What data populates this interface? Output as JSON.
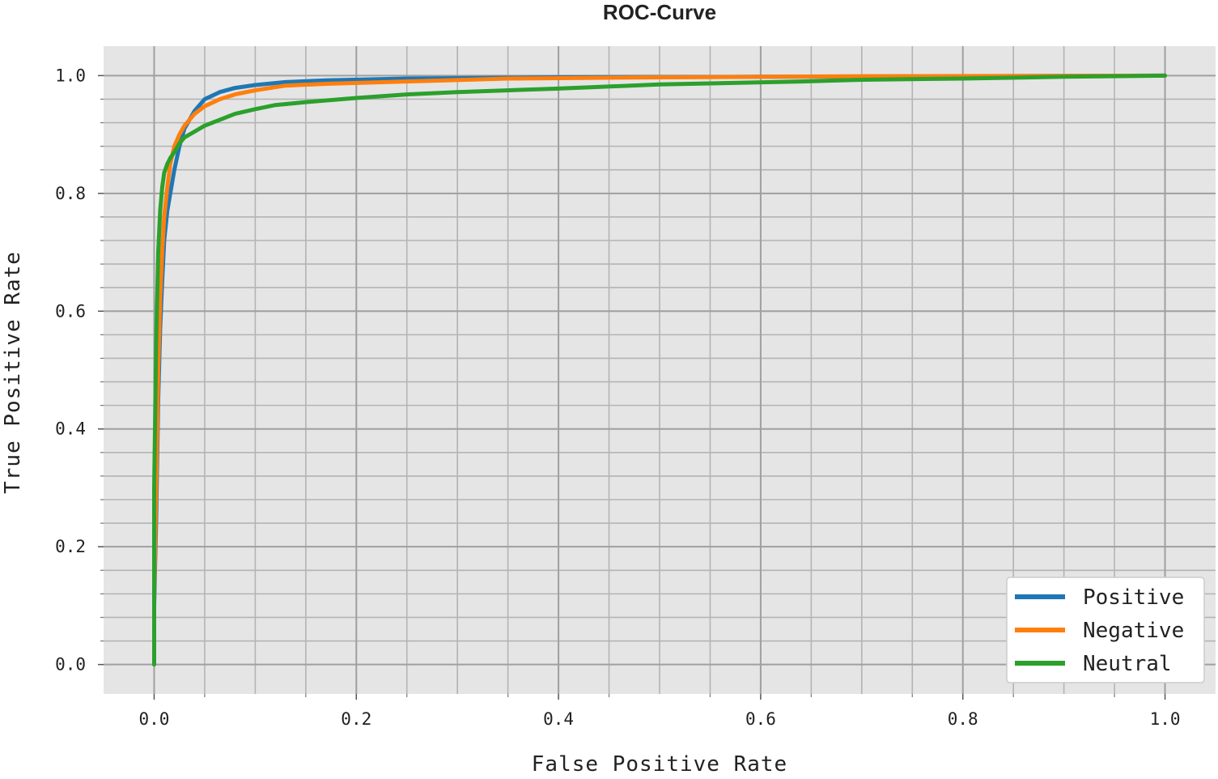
{
  "chart_data": {
    "type": "line",
    "title": "ROC-Curve",
    "xlabel": "False Positive Rate",
    "ylabel": "True Positive Rate",
    "xlim": [
      -0.05,
      1.05
    ],
    "ylim": [
      -0.05,
      1.05
    ],
    "xticks": [
      0.0,
      0.2,
      0.4,
      0.6,
      0.8,
      1.0
    ],
    "yticks": [
      0.0,
      0.2,
      0.4,
      0.6,
      0.8,
      1.0
    ],
    "xtick_labels": [
      "0.0",
      "0.2",
      "0.4",
      "0.6",
      "0.8",
      "1.0"
    ],
    "ytick_labels": [
      "0.0",
      "0.2",
      "0.4",
      "0.6",
      "0.8",
      "1.0"
    ],
    "grid": true,
    "legend_position": "bottom-right",
    "series": [
      {
        "name": "Positive",
        "color": "#1f77b4",
        "x": [
          0.0,
          0.0,
          0.002,
          0.004,
          0.006,
          0.008,
          0.01,
          0.013,
          0.016,
          0.02,
          0.025,
          0.03,
          0.04,
          0.05,
          0.065,
          0.08,
          0.1,
          0.13,
          0.17,
          0.25,
          0.4,
          0.6,
          0.8,
          1.0
        ],
        "y": [
          0.0,
          0.1,
          0.25,
          0.45,
          0.57,
          0.65,
          0.72,
          0.77,
          0.8,
          0.84,
          0.88,
          0.91,
          0.94,
          0.96,
          0.972,
          0.979,
          0.984,
          0.989,
          0.992,
          0.995,
          0.997,
          0.998,
          0.999,
          1.0
        ]
      },
      {
        "name": "Negative",
        "color": "#ff7f0e",
        "x": [
          0.0,
          0.0,
          0.002,
          0.004,
          0.006,
          0.008,
          0.01,
          0.013,
          0.016,
          0.02,
          0.025,
          0.03,
          0.04,
          0.05,
          0.065,
          0.08,
          0.1,
          0.13,
          0.17,
          0.25,
          0.35,
          0.5,
          0.7,
          1.0
        ],
        "y": [
          0.0,
          0.12,
          0.3,
          0.5,
          0.62,
          0.7,
          0.76,
          0.81,
          0.85,
          0.88,
          0.9,
          0.915,
          0.935,
          0.948,
          0.96,
          0.968,
          0.975,
          0.983,
          0.986,
          0.99,
          0.995,
          0.997,
          0.999,
          1.0
        ]
      },
      {
        "name": "Neutral",
        "color": "#2ca02c",
        "x": [
          0.0,
          0.0,
          0.002,
          0.004,
          0.006,
          0.008,
          0.01,
          0.013,
          0.016,
          0.02,
          0.025,
          0.03,
          0.04,
          0.05,
          0.065,
          0.08,
          0.1,
          0.12,
          0.15,
          0.2,
          0.25,
          0.3,
          0.4,
          0.5,
          0.64,
          0.7,
          0.8,
          0.9,
          1.0
        ],
        "y": [
          0.0,
          0.3,
          0.55,
          0.7,
          0.77,
          0.81,
          0.835,
          0.85,
          0.86,
          0.87,
          0.885,
          0.895,
          0.905,
          0.915,
          0.925,
          0.935,
          0.943,
          0.95,
          0.955,
          0.962,
          0.968,
          0.972,
          0.978,
          0.985,
          0.99,
          0.993,
          0.995,
          0.998,
          1.0
        ]
      }
    ]
  }
}
